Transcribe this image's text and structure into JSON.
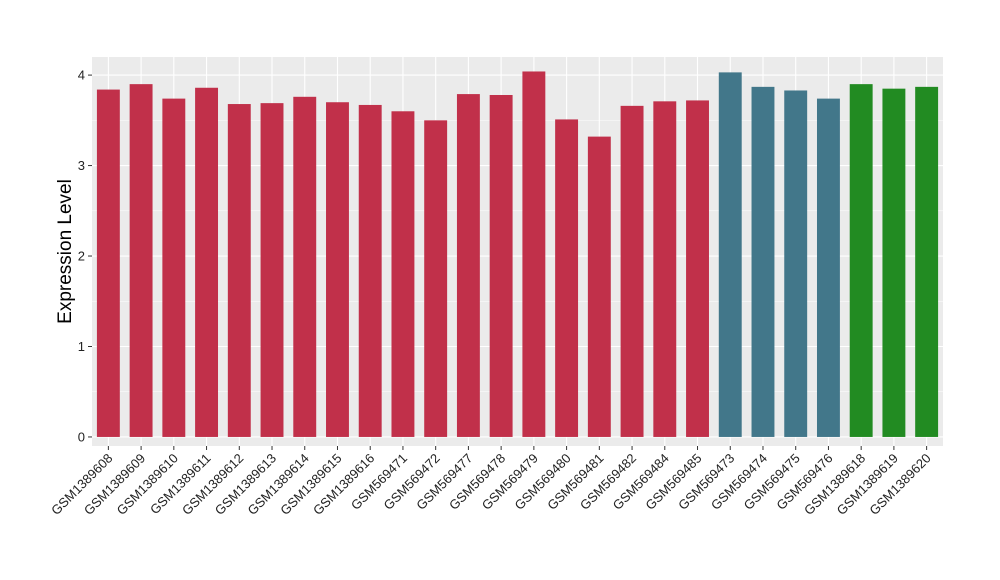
{
  "chart_data": {
    "type": "bar",
    "ylabel": "Expression Level",
    "xlabel": "",
    "ylim": [
      -0.1,
      4.2
    ],
    "yticks": [
      0,
      1,
      2,
      3,
      4
    ],
    "grid": true,
    "categories": [
      "GSM1389608",
      "GSM1389609",
      "GSM1389610",
      "GSM1389611",
      "GSM1389612",
      "GSM1389613",
      "GSM1389614",
      "GSM1389615",
      "GSM1389616",
      "GSM569471",
      "GSM569472",
      "GSM569477",
      "GSM569478",
      "GSM569479",
      "GSM569480",
      "GSM569481",
      "GSM569482",
      "GSM569484",
      "GSM569485",
      "GSM569473",
      "GSM569474",
      "GSM569475",
      "GSM569476",
      "GSM1389618",
      "GSM1389619",
      "GSM1389620"
    ],
    "values": [
      3.84,
      3.9,
      3.74,
      3.86,
      3.68,
      3.69,
      3.76,
      3.7,
      3.67,
      3.6,
      3.5,
      3.79,
      3.78,
      4.04,
      3.51,
      3.32,
      3.66,
      3.71,
      3.72,
      4.03,
      3.87,
      3.83,
      3.74,
      3.9,
      3.85,
      3.87
    ],
    "groups": [
      0,
      0,
      0,
      0,
      0,
      0,
      0,
      0,
      0,
      0,
      0,
      0,
      0,
      0,
      0,
      0,
      0,
      0,
      0,
      1,
      1,
      1,
      1,
      2,
      2,
      2
    ],
    "group_colors": [
      "#c1304a",
      "#42778a",
      "#228b22"
    ],
    "panel_color": "#ebebeb",
    "grid_color": "#ffffff"
  }
}
